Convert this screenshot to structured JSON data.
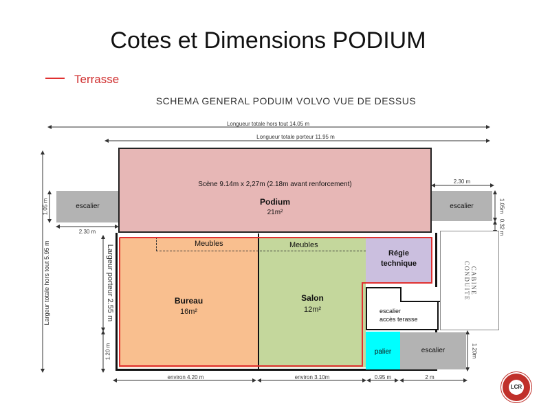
{
  "title": "Cotes et Dimensions PODIUM",
  "legend": {
    "label": "Terrasse",
    "color": "#e03030"
  },
  "subtitle": "SCHEMA GENERAL PODUIM VOLVO VUE DE DESSUS",
  "dimensions": {
    "total_length": "Longueur totale hors tout 14.05 m",
    "carrier_length": "Longueur totale porteur 11.95 m",
    "total_width": "Largeur totale hors tout 5.95 m",
    "carrier_width": "Largeur porteur 2.55 m",
    "left_stair_height": "1.05 m",
    "left_stair_width": "2.30 m",
    "right_stair_width": "2.30 m",
    "right_stair_height": "1.05m",
    "right_gap": "0.32 m",
    "left_bottom": "1.20 m",
    "bottom_stair_height": "1.20m",
    "bureau_width": "environ 4.20 m",
    "salon_width": "environ 3.10m",
    "palier_width": "0.95 m",
    "stair_width": "2 m"
  },
  "rooms": {
    "scene": "Scène 9.14m x 2,27m (2.18m avant renforcement)",
    "podium": "Podium",
    "podium_area": "21m²",
    "stair": "escalier",
    "furniture": "Meubles",
    "bureau": "Bureau",
    "bureau_area": "16m²",
    "salon": "Salon",
    "salon_area": "12m²",
    "regie_1": "Régie",
    "regie_2": "technique",
    "cabin": "CABINE CONDUITE",
    "terrace_stair_1": "escalier",
    "terrace_stair_2": "accès terasse",
    "palier": "palier"
  },
  "colors": {
    "podium": "#e7b7b6",
    "bureau": "#f9bf8f",
    "salon": "#c4d79c",
    "regie": "#cbbfdf",
    "stair": "#b3b3b3",
    "palier": "#00ffff",
    "terrace": "#e03030"
  },
  "logo": "LCR"
}
